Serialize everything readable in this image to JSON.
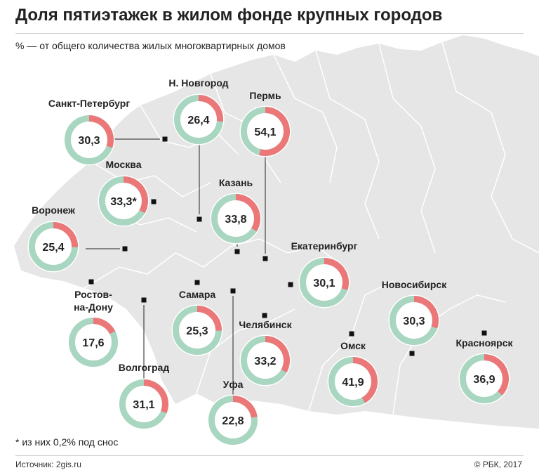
{
  "title": "Доля пятиэтажек в жилом фонде крупных городов",
  "subtitle": "% — от общего количества жилых многоквартирных домов",
  "footnote": "* из них 0,2% под снос",
  "source": "Источник: 2gis.ru",
  "credit": "© РБК, 2017",
  "colors": {
    "share": "#ec7779",
    "rest": "#a8d6c0",
    "map": "#e6e6e6",
    "border": "#ffffff",
    "marker": "#111111",
    "leader": "#222222"
  },
  "chart_data": {
    "type": "pie",
    "unit": "%",
    "title": "Доля пятиэтажек в жилом фонде крупных городов",
    "subtitle": "% — от общего количества жилых многоквартирных домов",
    "series": [
      {
        "city": "Санкт-Петербург",
        "value": 30.3,
        "label": "30,3"
      },
      {
        "city": "Н. Новгород",
        "value": 26.4,
        "label": "26,4"
      },
      {
        "city": "Пермь",
        "value": 54.1,
        "label": "54,1"
      },
      {
        "city": "Москва",
        "value": 33.3,
        "label": "33,3*"
      },
      {
        "city": "Казань",
        "value": 33.8,
        "label": "33,8"
      },
      {
        "city": "Воронеж",
        "value": 25.4,
        "label": "25,4"
      },
      {
        "city": "Екатеринбург",
        "value": 30.1,
        "label": "30,1"
      },
      {
        "city": "Ростов-\nна-Дону",
        "value": 17.6,
        "label": "17,6"
      },
      {
        "city": "Самара",
        "value": 25.3,
        "label": "25,3"
      },
      {
        "city": "Новосибирск",
        "value": 30.3,
        "label": "30,3"
      },
      {
        "city": "Челябинск",
        "value": 33.2,
        "label": "33,2"
      },
      {
        "city": "Омск",
        "value": 41.9,
        "label": "41,9"
      },
      {
        "city": "Красноярск",
        "value": 36.9,
        "label": "36,9"
      },
      {
        "city": "Волгоград",
        "value": 31.1,
        "label": "31,1"
      },
      {
        "city": "Уфа",
        "value": 22.8,
        "label": "22,8"
      }
    ]
  }
}
